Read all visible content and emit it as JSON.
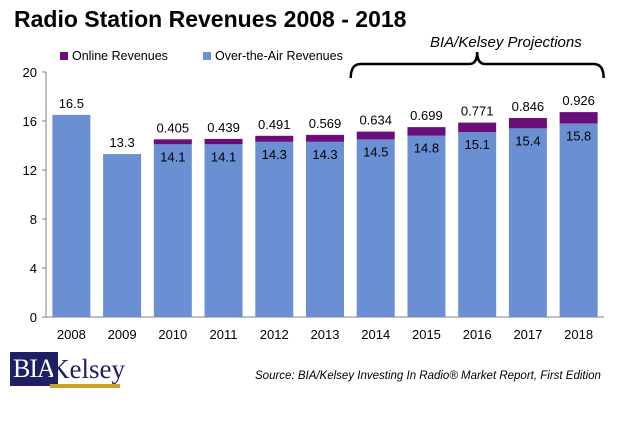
{
  "header": {
    "title": "Radio Station Revenues 2008 - 2018",
    "projection_label": "BIA/Kelsey Projections",
    "source": "Source: BIA/Kelsey Investing In Radio® Market Report, First Edition"
  },
  "logo": {
    "part1": "BIA",
    "part2": "Kelsey"
  },
  "colors": {
    "online": "#6a0e7a",
    "ota": "#6b8fd3"
  },
  "chart_data": {
    "type": "bar",
    "stacked": true,
    "title": "Radio Station Revenues 2008 - 2018",
    "categories": [
      "2008",
      "2009",
      "2010",
      "2011",
      "2012",
      "2013",
      "2014",
      "2015",
      "2016",
      "2017",
      "2018"
    ],
    "series": [
      {
        "name": "Over-the-Air Revenues",
        "values": [
          16.5,
          13.3,
          14.1,
          14.1,
          14.3,
          14.3,
          14.5,
          14.8,
          15.1,
          15.4,
          15.8
        ]
      },
      {
        "name": "Online Revenues",
        "values": [
          null,
          null,
          0.405,
          0.439,
          0.491,
          0.569,
          0.634,
          0.699,
          0.771,
          0.846,
          0.926
        ]
      }
    ],
    "ylim": [
      0,
      20
    ],
    "yticks": [
      "0",
      "4",
      "8",
      "12",
      "16",
      "20"
    ],
    "legend": "top-left",
    "grid": false,
    "projection_categories": [
      "2014",
      "2015",
      "2016",
      "2017",
      "2018"
    ]
  }
}
